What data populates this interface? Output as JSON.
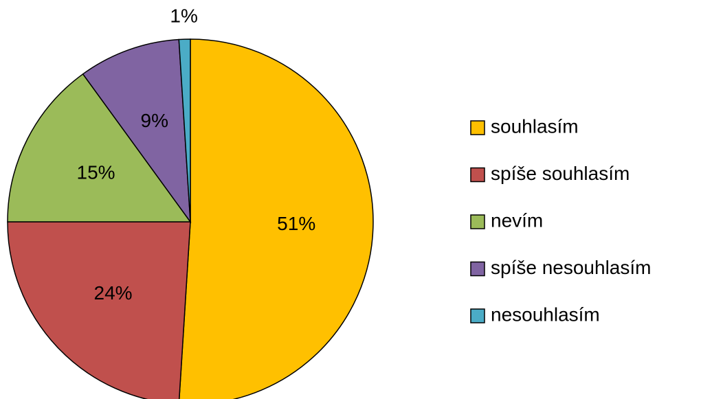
{
  "chart_data": {
    "type": "pie",
    "categories": [
      "souhlasím",
      "spíše souhlasím",
      "nevím",
      "spíše nesouhlasím",
      "nesouhlasím"
    ],
    "values": [
      51,
      24,
      15,
      9,
      1
    ],
    "value_labels": [
      "51%",
      "24%",
      "15%",
      "9%",
      "1%"
    ],
    "colors": [
      "#FFC000",
      "#C0504D",
      "#9BBB59",
      "#8064A2",
      "#4BACC6"
    ],
    "legend": "right"
  }
}
